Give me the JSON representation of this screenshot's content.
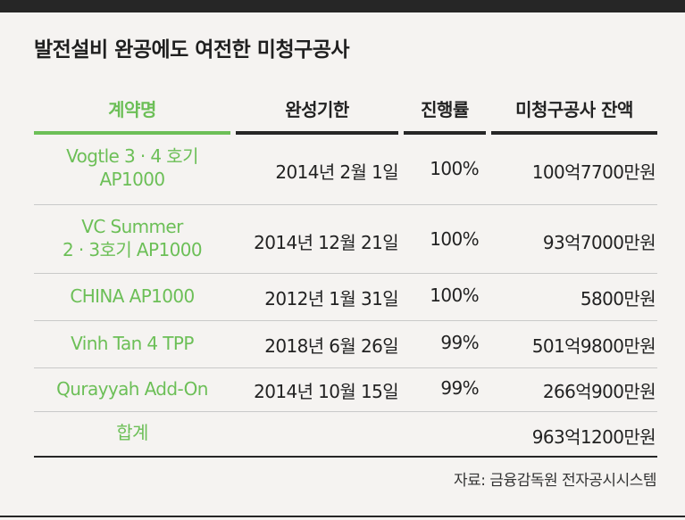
{
  "title": "발전설비 완공에도 여전한 미청구공사",
  "columns": [
    "계약명",
    "완성기한",
    "진행률",
    "미청구공사 잔액"
  ],
  "rows": [
    {
      "name_line1": "Vogtle  3 · 4 호기",
      "name_line2": "AP1000",
      "deadline": "2014년 2월 1일",
      "progress": "100%",
      "balance": "100억7700만원"
    },
    {
      "name_line1": "VC Summer",
      "name_line2": "2 · 3호기 AP1000",
      "deadline": "2014년 12월 21일",
      "progress": "100%",
      "balance": "93억7000만원"
    },
    {
      "name_line1": "CHINA AP1000",
      "name_line2": "",
      "deadline": "2012년 1월 31일",
      "progress": "100%",
      "balance": "5800만원"
    },
    {
      "name_line1": "Vinh Tan 4 TPP",
      "name_line2": "",
      "deadline": "2018년 6월 26일",
      "progress": "99%",
      "balance": "501억9800만원"
    },
    {
      "name_line1": "Qurayyah Add-On",
      "name_line2": "",
      "deadline": "2014년 10월 15일",
      "progress": "99%",
      "balance": "266억900만원"
    }
  ],
  "total": {
    "label": "합계",
    "balance": "963억1200만원"
  },
  "source": "자료: 금융감독원 전자공시시스템",
  "colors": {
    "accent_green": "#6cbf57",
    "dark": "#262626"
  }
}
